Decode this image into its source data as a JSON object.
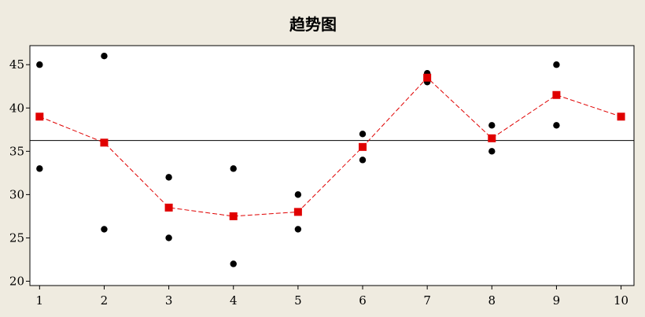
{
  "chart_data": {
    "type": "scatter",
    "title": "趋势图",
    "xlabel": "",
    "ylabel": "",
    "x_ticks": [
      1,
      2,
      3,
      4,
      5,
      6,
      7,
      8,
      9,
      10
    ],
    "y_ticks": [
      20,
      25,
      30,
      35,
      40,
      45
    ],
    "xlim": [
      0.85,
      10.2
    ],
    "ylim": [
      19.5,
      47.2
    ],
    "grid": false,
    "reference_line": {
      "y": 36.25,
      "color": "#000000"
    },
    "series": [
      {
        "style": "scatter",
        "marker": "circle",
        "color": "#000000",
        "points": [
          [
            1,
            45
          ],
          [
            1,
            33
          ],
          [
            2,
            46
          ],
          [
            2,
            26
          ],
          [
            3,
            32
          ],
          [
            3,
            25
          ],
          [
            4,
            33
          ],
          [
            4,
            22
          ],
          [
            5,
            30
          ],
          [
            5,
            26
          ],
          [
            6,
            37
          ],
          [
            6,
            34
          ],
          [
            7,
            44
          ],
          [
            7,
            43
          ],
          [
            8,
            38
          ],
          [
            8,
            35
          ],
          [
            9,
            45
          ],
          [
            9,
            38
          ]
        ]
      },
      {
        "style": "dashed-line-with-markers",
        "marker": "square",
        "color": "#e00000",
        "x": [
          1,
          2,
          3,
          4,
          5,
          6,
          7,
          8,
          9,
          10
        ],
        "y": [
          39,
          36,
          28.5,
          27.5,
          28,
          35.5,
          43.5,
          36.5,
          41.5,
          39
        ]
      }
    ]
  }
}
